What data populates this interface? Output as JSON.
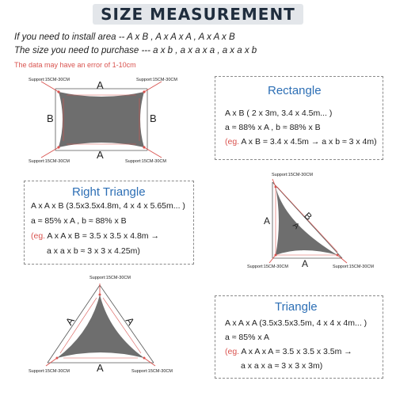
{
  "header": {
    "title": "SIZE MEASUREMENT"
  },
  "intro": {
    "line1": "If you need to install area -- A x B , A x A x A , A x A x B",
    "line2": "The size you need to purchase --- a x b , a x a x a , a x a x b",
    "note": "The data may have an error of 1-10cm"
  },
  "support_label": "Support:15CM-30CM",
  "rectangle": {
    "title": "Rectangle",
    "line1": "A x B ( 2 x 3m, 3.4 x 4.5m... )",
    "line2": "a ≈ 88% x A , b ≈ 88% x B",
    "eg_prefix": "(eg.",
    "eg_rest": " A x B = 3.4 x 4.5m → a x b ≈ 3 x 4m)",
    "dim_a": "A",
    "dim_b": "B"
  },
  "right_triangle": {
    "title": "Right Triangle",
    "line1": "A x A x B (3.5x3.5x4.8m, 4 x 4 x 5.65m... )",
    "line2": "a ≈ 85% x A , b ≈ 88% x B",
    "eg_prefix": "(eg.",
    "eg_rest": " A x A x B = 3.5 x 3.5 x 4.8m →",
    "line4": "a x a x b ≈ 3 x 3 x 4.25m)",
    "dim_a": "A",
    "dim_b": "B"
  },
  "triangle": {
    "title": "Triangle",
    "line1": "A x A x A (3.5x3.5x3.5m, 4 x 4 x 4m... )",
    "line2": "a ≈ 85% x A",
    "eg_prefix": "(eg.",
    "eg_rest": " A x A x A = 3.5 x 3.5 x 3.5m →",
    "line4": "a x a x a ≈ 3 x 3 x 3m)",
    "dim_a": "A"
  },
  "colors": {
    "shade": "#6e6e6e",
    "accent_red": "#d9534f",
    "title_blue": "#2d6fb5",
    "header_bg": "#e3e6ea"
  }
}
